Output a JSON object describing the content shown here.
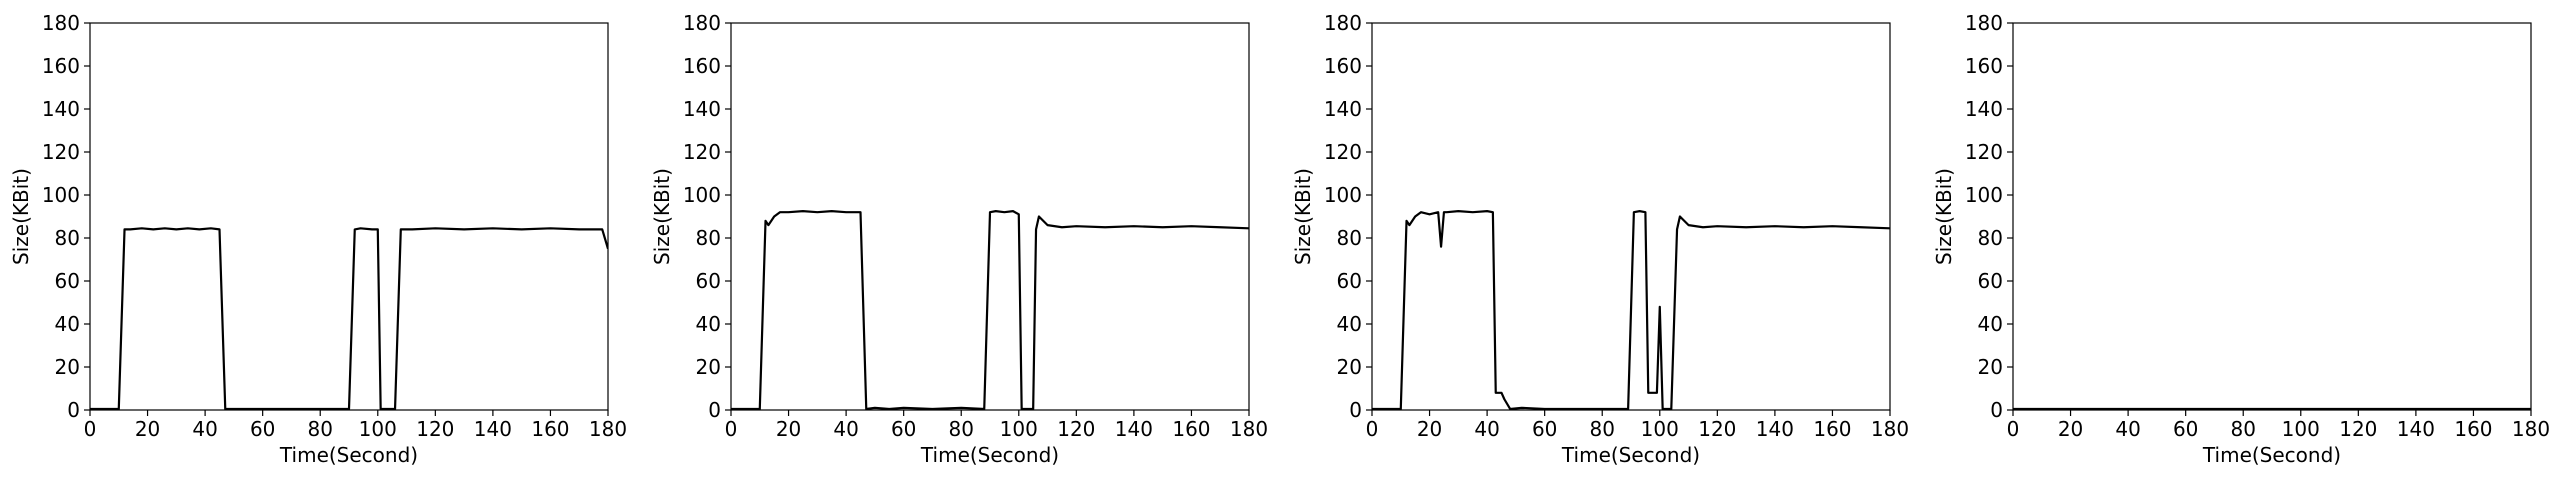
{
  "chart_data": [
    {
      "type": "line",
      "xlabel": "Time(Second)",
      "ylabel": "Size(KBit)",
      "xlim": [
        0,
        180
      ],
      "ylim": [
        0,
        180
      ],
      "xticks": [
        0,
        20,
        40,
        60,
        80,
        100,
        120,
        140,
        160,
        180
      ],
      "yticks": [
        0,
        20,
        40,
        60,
        80,
        100,
        120,
        140,
        160,
        180
      ],
      "grid": false,
      "line_color": "#000000",
      "series": [
        {
          "x": [
            0,
            10,
            12,
            14,
            18,
            22,
            26,
            30,
            34,
            38,
            42,
            45,
            47,
            55,
            65,
            75,
            85,
            90,
            92,
            94,
            98,
            100,
            101,
            104,
            106,
            108,
            112,
            120,
            130,
            140,
            150,
            160,
            170,
            178,
            180
          ],
          "y": [
            0.5,
            0.5,
            84,
            84,
            84.5,
            84,
            84.5,
            84,
            84.5,
            84,
            84.5,
            84,
            0.5,
            0.5,
            0.5,
            0.5,
            0.5,
            0.5,
            84,
            84.5,
            84,
            84,
            0.5,
            0.5,
            0.5,
            84,
            84,
            84.5,
            84,
            84.5,
            84,
            84.5,
            84,
            84,
            75
          ]
        }
      ]
    },
    {
      "type": "line",
      "xlabel": "Time(Second)",
      "ylabel": "Size(KBit)",
      "xlim": [
        0,
        180
      ],
      "ylim": [
        0,
        180
      ],
      "xticks": [
        0,
        20,
        40,
        60,
        80,
        100,
        120,
        140,
        160,
        180
      ],
      "yticks": [
        0,
        20,
        40,
        60,
        80,
        100,
        120,
        140,
        160,
        180
      ],
      "grid": false,
      "line_color": "#000000",
      "series": [
        {
          "x": [
            0,
            10,
            12,
            13,
            15,
            17,
            20,
            25,
            30,
            35,
            40,
            44,
            45,
            47,
            50,
            55,
            60,
            70,
            80,
            88,
            90,
            92,
            95,
            98,
            100,
            101,
            103,
            105,
            106,
            107,
            110,
            115,
            120,
            130,
            140,
            150,
            160,
            170,
            180
          ],
          "y": [
            0.5,
            0.5,
            88,
            86,
            90,
            92,
            92,
            92.5,
            92,
            92.5,
            92,
            92,
            92,
            0.5,
            1,
            0.5,
            1,
            0.5,
            1,
            0.5,
            92,
            92.5,
            92,
            92.5,
            91,
            0.5,
            0.5,
            0.5,
            84,
            90,
            86,
            85,
            85.5,
            85,
            85.5,
            85,
            85.5,
            85,
            84.5
          ]
        }
      ]
    },
    {
      "type": "line",
      "xlabel": "Time(Second)",
      "ylabel": "Size(KBit)",
      "xlim": [
        0,
        180
      ],
      "ylim": [
        0,
        180
      ],
      "xticks": [
        0,
        20,
        40,
        60,
        80,
        100,
        120,
        140,
        160,
        180
      ],
      "yticks": [
        0,
        20,
        40,
        60,
        80,
        100,
        120,
        140,
        160,
        180
      ],
      "grid": false,
      "line_color": "#000000",
      "series": [
        {
          "x": [
            0,
            10,
            12,
            13,
            15,
            17,
            20,
            23,
            24,
            25,
            26,
            30,
            35,
            40,
            42,
            43,
            45,
            46,
            48,
            52,
            60,
            70,
            80,
            89,
            91,
            93,
            95,
            96,
            97,
            99,
            100,
            101,
            102,
            104,
            106,
            107,
            110,
            115,
            120,
            130,
            140,
            150,
            160,
            170,
            180
          ],
          "y": [
            0.5,
            0.5,
            88,
            86,
            90,
            92,
            91,
            92,
            76,
            92,
            92,
            92.5,
            92,
            92.5,
            92,
            8,
            8,
            5,
            0.5,
            1,
            0.5,
            0.5,
            0.5,
            0.5,
            92,
            92.5,
            92,
            8,
            8,
            8,
            48,
            0.5,
            0.5,
            0.5,
            84,
            90,
            86,
            85,
            85.5,
            85,
            85.5,
            85,
            85.5,
            85,
            84.5
          ]
        }
      ]
    },
    {
      "type": "line",
      "xlabel": "Time(Second)",
      "ylabel": "Size(KBit)",
      "xlim": [
        0,
        180
      ],
      "ylim": [
        0,
        180
      ],
      "xticks": [
        0,
        20,
        40,
        60,
        80,
        100,
        120,
        140,
        160,
        180
      ],
      "yticks": [
        0,
        20,
        40,
        60,
        80,
        100,
        120,
        140,
        160,
        180
      ],
      "grid": false,
      "line_color": "#000000",
      "series": [
        {
          "x": [
            0,
            30,
            60,
            90,
            120,
            150,
            180
          ],
          "y": [
            0.5,
            0.5,
            0.5,
            0.5,
            0.5,
            0.5,
            0.5
          ]
        }
      ]
    }
  ]
}
